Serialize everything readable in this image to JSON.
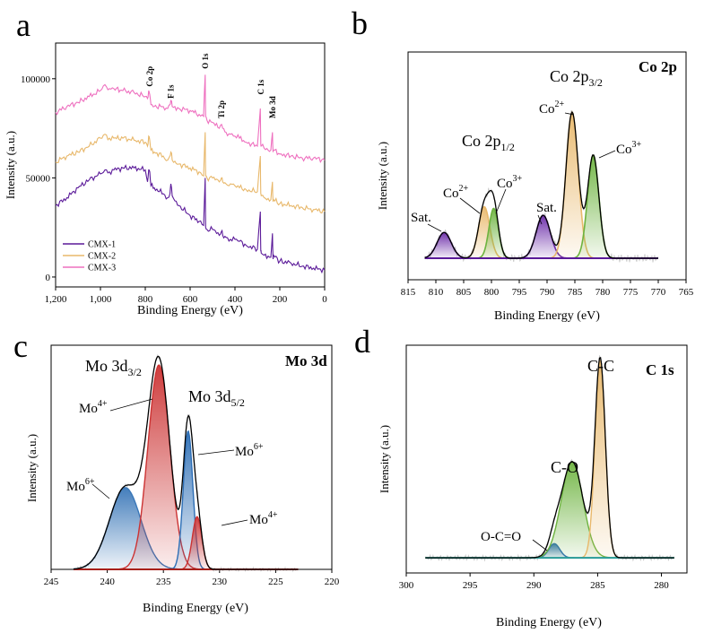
{
  "panels": {
    "a": {
      "letter": "a"
    },
    "b": {
      "letter": "b",
      "name": "Co 2p"
    },
    "c": {
      "letter": "c",
      "name": "Mo 3d"
    },
    "d": {
      "letter": "d",
      "name": "C 1s"
    }
  },
  "chart_data": [
    {
      "id": "a",
      "type": "line",
      "title": "",
      "xlabel": "Binding Energy (eV)",
      "ylabel": "Intensity (a.u.)",
      "xlim": [
        1200,
        0
      ],
      "ylim": [
        -5000,
        118000
      ],
      "xticks": [
        1200,
        1000,
        800,
        600,
        400,
        200,
        0
      ],
      "xtick_labels": [
        "1,200",
        "1,000",
        "800",
        "600",
        "400",
        "200",
        "0"
      ],
      "yticks": [
        0,
        50000,
        100000
      ],
      "ytick_labels": [
        "0",
        "50000",
        "100000"
      ],
      "peak_labels": [
        {
          "text": "Co 2p",
          "x": 780,
          "y": 96000
        },
        {
          "text": "F 1s",
          "x": 686,
          "y": 90000
        },
        {
          "text": "O 1s",
          "x": 532,
          "y": 105000
        },
        {
          "text": "Ti 2p",
          "x": 460,
          "y": 80000
        },
        {
          "text": "C 1s",
          "x": 285,
          "y": 92000
        },
        {
          "text": "Mo 3d",
          "x": 232,
          "y": 80000
        }
      ],
      "legend": [
        "CMX-1",
        "CMX-2",
        "CMX-3"
      ],
      "legend_position": "bottom-left",
      "series": [
        {
          "name": "CMX-1",
          "color": "#5b1a99",
          "x": [
            1200,
            1150,
            1100,
            1050,
            1000,
            980,
            960,
            940,
            900,
            850,
            800,
            790,
            785,
            780,
            775,
            760,
            720,
            700,
            690,
            686,
            680,
            650,
            600,
            560,
            540,
            533,
            531,
            525,
            500,
            470,
            460,
            455,
            440,
            420,
            400,
            380,
            350,
            300,
            287,
            285,
            283,
            270,
            240,
            233,
            230,
            228,
            200,
            150,
            100,
            50,
            0
          ],
          "y": [
            36000,
            40000,
            45000,
            49000,
            52000,
            54000,
            53000,
            54000,
            55000,
            55000,
            54000,
            48000,
            54000,
            53000,
            46000,
            45000,
            42000,
            40000,
            42000,
            47000,
            41000,
            36000,
            31000,
            28000,
            26000,
            50000,
            25000,
            24000,
            24000,
            21000,
            23000,
            21000,
            20000,
            19000,
            19000,
            18000,
            16000,
            14000,
            33000,
            13000,
            12000,
            11000,
            10000,
            22000,
            9000,
            11000,
            8000,
            7000,
            5500,
            4500,
            3500
          ]
        },
        {
          "name": "CMX-2",
          "color": "#e8b86b",
          "x": [
            1200,
            1150,
            1100,
            1050,
            1000,
            980,
            960,
            940,
            900,
            850,
            800,
            790,
            785,
            780,
            775,
            760,
            720,
            700,
            690,
            686,
            680,
            650,
            600,
            560,
            540,
            533,
            531,
            525,
            500,
            470,
            460,
            455,
            440,
            420,
            400,
            380,
            350,
            300,
            287,
            285,
            283,
            270,
            240,
            233,
            230,
            228,
            200,
            150,
            100,
            50,
            0
          ],
          "y": [
            58000,
            61000,
            63000,
            66000,
            70000,
            72000,
            70000,
            70000,
            70000,
            69000,
            68000,
            66000,
            71000,
            69000,
            64000,
            63000,
            61000,
            59000,
            61000,
            63000,
            59000,
            57000,
            55000,
            53000,
            51000,
            73000,
            51000,
            50000,
            50000,
            48000,
            50000,
            48000,
            47000,
            47000,
            46000,
            45000,
            44000,
            43000,
            61000,
            42000,
            41000,
            40000,
            39000,
            48000,
            38000,
            39000,
            37000,
            36000,
            35000,
            34000,
            33000
          ]
        },
        {
          "name": "CMX-3",
          "color": "#ee70bf",
          "x": [
            1200,
            1150,
            1100,
            1050,
            1000,
            980,
            960,
            940,
            900,
            850,
            800,
            790,
            785,
            780,
            775,
            760,
            720,
            700,
            690,
            686,
            680,
            650,
            600,
            560,
            540,
            533,
            531,
            525,
            500,
            470,
            460,
            455,
            440,
            420,
            400,
            380,
            350,
            300,
            287,
            285,
            283,
            270,
            240,
            233,
            230,
            228,
            200,
            150,
            100,
            50,
            0
          ],
          "y": [
            83000,
            86000,
            88000,
            91000,
            94000,
            97000,
            95000,
            95000,
            94000,
            93000,
            91000,
            90000,
            94000,
            92000,
            87000,
            86000,
            86000,
            85000,
            87000,
            89000,
            86000,
            85000,
            84000,
            82000,
            81000,
            102000,
            81000,
            79000,
            78000,
            75000,
            77000,
            75000,
            73000,
            72000,
            71000,
            70000,
            68000,
            66000,
            85000,
            67000,
            66000,
            65000,
            64000,
            73000,
            63000,
            64000,
            62000,
            61000,
            60000,
            60000,
            59000
          ]
        }
      ]
    },
    {
      "id": "b",
      "type": "line",
      "title": "Co 2p",
      "xlabel": "Binding Energy (eV)",
      "ylabel": "Intensity (a.u.)",
      "xlim": [
        815,
        765
      ],
      "ylim": [
        -0.25,
        2.4
      ],
      "xticks": [
        815,
        810,
        805,
        800,
        795,
        790,
        785,
        780,
        775,
        770,
        765
      ],
      "baseline_range": [
        812,
        770
      ],
      "components": [
        {
          "name": "Sat. (low)",
          "center": 808.5,
          "fwhm": 3.0,
          "height": 0.3,
          "color": "#6a2aa8"
        },
        {
          "name": "Co2+ (2p1/2)",
          "center": 801.3,
          "fwhm": 2.4,
          "height": 0.6,
          "color": "#e8b86b"
        },
        {
          "name": "Co3+ (2p1/2)",
          "center": 799.6,
          "fwhm": 2.0,
          "height": 0.58,
          "color": "#6db33f"
        },
        {
          "name": "Sat. (high)",
          "center": 790.7,
          "fwhm": 3.0,
          "height": 0.5,
          "color": "#6a2aa8"
        },
        {
          "name": "Co2+ (2p3/2)",
          "center": 785.5,
          "fwhm": 2.6,
          "height": 1.7,
          "color": "#e8b86b"
        },
        {
          "name": "Co3+ (2p3/2)",
          "center": 781.7,
          "fwhm": 2.4,
          "height": 1.2,
          "color": "#6db33f"
        }
      ],
      "annotations": [
        "Sat.",
        "Co2+",
        "Co3+",
        "Sat.",
        "Co2+",
        "Co3+",
        "Co 2p1/2",
        "Co 2p3/2"
      ]
    },
    {
      "id": "c",
      "type": "line",
      "title": "Mo 3d",
      "xlabel": "Binding Energy (eV)",
      "ylabel": "Intensity (a.u.)",
      "xlim": [
        245,
        220
      ],
      "ylim": [
        0,
        1.7
      ],
      "xticks": [
        245,
        240,
        235,
        230,
        225,
        220
      ],
      "baseline_range": [
        243,
        223
      ],
      "components": [
        {
          "name": "Mo6+ (3d3/2)",
          "center": 238.4,
          "fwhm": 3.3,
          "height": 0.62,
          "color": "#3a77b8"
        },
        {
          "name": "Mo4+ (3d3/2)",
          "center": 235.4,
          "fwhm": 2.3,
          "height": 1.55,
          "color": "#cc3333"
        },
        {
          "name": "Mo6+ (3d5/2)",
          "center": 232.8,
          "fwhm": 1.0,
          "height": 1.05,
          "color": "#2d6eb5"
        },
        {
          "name": "Mo4+ (3d5/2)",
          "center": 232.0,
          "fwhm": 1.0,
          "height": 0.4,
          "color": "#cc3333"
        }
      ],
      "annotations": [
        "Mo 3d3/2",
        "Mo 3d5/2",
        "Mo4+",
        "Mo6+",
        "Mo6+",
        "Mo4+"
      ]
    },
    {
      "id": "d",
      "type": "line",
      "title": "C 1s",
      "xlabel": "Binding Energy (eV)",
      "ylabel": "Intensity (a.u.)",
      "xlim": [
        300,
        278
      ],
      "ylim": [
        -0.15,
        2.1
      ],
      "xticks": [
        300,
        295,
        290,
        285,
        280
      ],
      "baseline_range": [
        298.5,
        279
      ],
      "components": [
        {
          "name": "O-C=O",
          "center": 288.4,
          "fwhm": 1.0,
          "height": 0.14,
          "color": "#2d6eb5"
        },
        {
          "name": "C-O",
          "center": 287.0,
          "fwhm": 2.0,
          "height": 0.95,
          "color": "#6db33f"
        },
        {
          "name": "C-C",
          "center": 284.8,
          "fwhm": 0.95,
          "height": 1.95,
          "color": "#e8b86b"
        }
      ],
      "annotations": [
        "C-C",
        "C-O",
        "O-C=O"
      ]
    }
  ],
  "labels": {
    "a_ytitle": "Intensity (a.u.)",
    "a_xtitle": "Binding Energy (eV)",
    "b_ytitle": "Intensity (a.u.)",
    "b_xtitle": "Binding Energy (eV)",
    "c_ytitle": "Intensity (a.u.)",
    "c_xtitle": "Binding Energy (eV)",
    "d_ytitle": "Intensity (a.u.)",
    "d_xtitle": "Binding Energy (eV)",
    "co_2p12": "Co 2p",
    "co_2p12_sub": "1/2",
    "co_2p32": "Co 2p",
    "co_2p32_sub": "3/2",
    "co2": "Co",
    "co2_sup": "2+",
    "co3": "Co",
    "co3_sup": "3+",
    "sat": "Sat.",
    "mo_3d32": "Mo 3d",
    "mo_3d32_sub": "3/2",
    "mo_3d52": "Mo 3d",
    "mo_3d52_sub": "5/2",
    "mo": "Mo",
    "mo4_sup": "4+",
    "mo6_sup": "6+",
    "cc": "C-C",
    "co": "C-O",
    "oco": "O-C=O"
  }
}
